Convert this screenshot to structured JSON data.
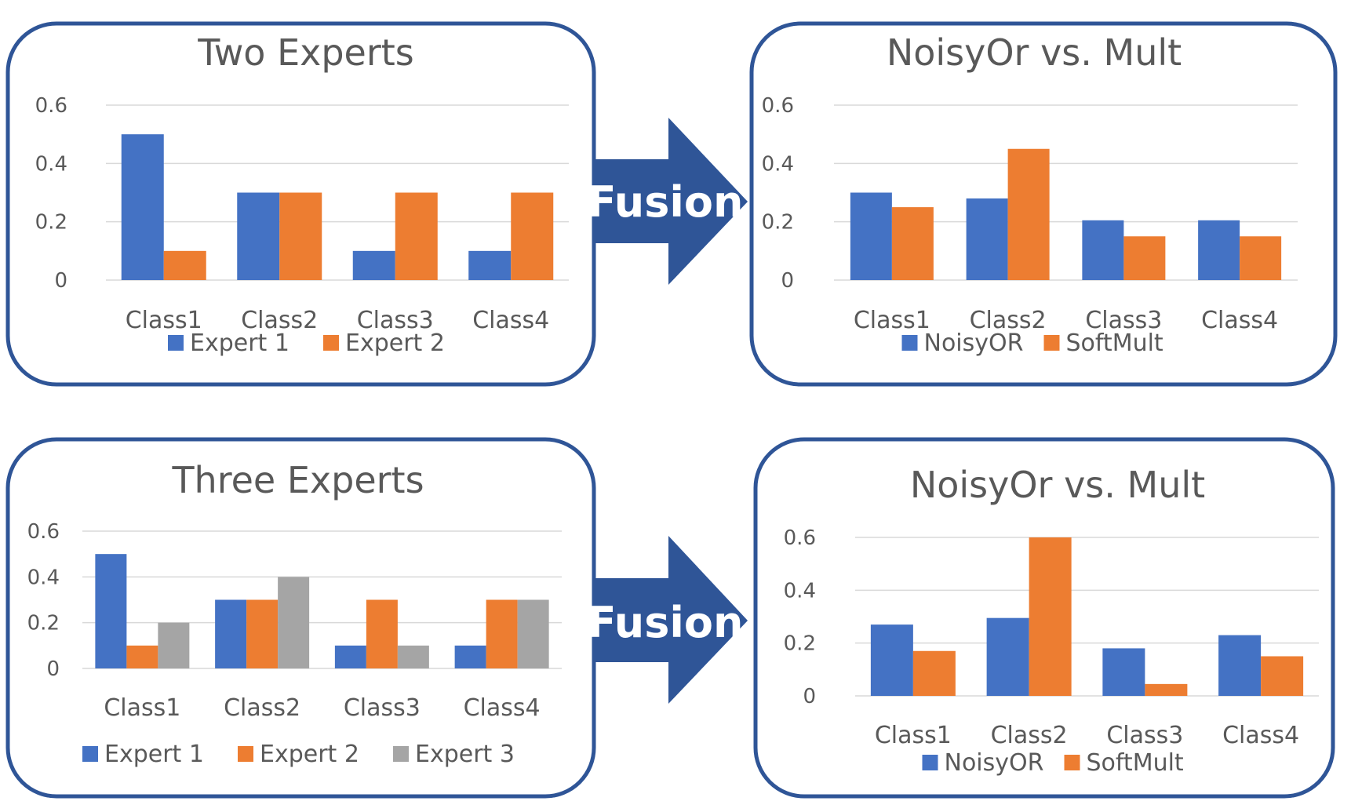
{
  "colors": {
    "frame": "#2f5597",
    "arrow": "#2f5597",
    "series_blue": "#4472c4",
    "series_orange": "#ed7d31",
    "series_gray": "#a5a5a5"
  },
  "arrows": [
    {
      "label": "Fusion"
    },
    {
      "label": "Fusion"
    }
  ],
  "chart_data": [
    {
      "type": "bar",
      "title": "Two Experts",
      "categories": [
        "Class1",
        "Class2",
        "Class3",
        "Class4"
      ],
      "yticks": [
        "0",
        "0.2",
        "0.4",
        "0.6"
      ],
      "ylim": [
        0,
        0.6
      ],
      "grid": true,
      "legend_position": "bottom",
      "series": [
        {
          "name": "Expert 1",
          "color": "#4472c4",
          "values": [
            0.5,
            0.3,
            0.1,
            0.1
          ]
        },
        {
          "name": "Expert 2",
          "color": "#ed7d31",
          "values": [
            0.1,
            0.3,
            0.3,
            0.3
          ]
        }
      ]
    },
    {
      "type": "bar",
      "title": "NoisyOr vs. Mult",
      "categories": [
        "Class1",
        "Class2",
        "Class3",
        "Class4"
      ],
      "yticks": [
        "0",
        "0.2",
        "0.4",
        "0.6"
      ],
      "ylim": [
        0,
        0.6
      ],
      "grid": true,
      "legend_position": "bottom",
      "series": [
        {
          "name": "NoisyOR",
          "color": "#4472c4",
          "values": [
            0.3,
            0.28,
            0.205,
            0.205
          ]
        },
        {
          "name": "SoftMult",
          "color": "#ed7d31",
          "values": [
            0.25,
            0.45,
            0.15,
            0.15
          ]
        }
      ]
    },
    {
      "type": "bar",
      "title": "Three Experts",
      "categories": [
        "Class1",
        "Class2",
        "Class3",
        "Class4"
      ],
      "yticks": [
        "0",
        "0.2",
        "0.4",
        "0.6"
      ],
      "ylim": [
        0,
        0.6
      ],
      "grid": true,
      "legend_position": "bottom",
      "series": [
        {
          "name": "Expert 1",
          "color": "#4472c4",
          "values": [
            0.5,
            0.3,
            0.1,
            0.1
          ]
        },
        {
          "name": "Expert 2",
          "color": "#ed7d31",
          "values": [
            0.1,
            0.3,
            0.3,
            0.3
          ]
        },
        {
          "name": "Expert 3",
          "color": "#a5a5a5",
          "values": [
            0.2,
            0.4,
            0.1,
            0.3
          ]
        }
      ]
    },
    {
      "type": "bar",
      "title": "NoisyOr vs. Mult",
      "categories": [
        "Class1",
        "Class2",
        "Class3",
        "Class4"
      ],
      "yticks": [
        "0",
        "0.2",
        "0.4",
        "0.6"
      ],
      "ylim": [
        0,
        0.6
      ],
      "grid": true,
      "legend_position": "bottom",
      "series": [
        {
          "name": "NoisyOR",
          "color": "#4472c4",
          "values": [
            0.27,
            0.295,
            0.18,
            0.23
          ]
        },
        {
          "name": "SoftMult",
          "color": "#ed7d31",
          "values": [
            0.17,
            0.6,
            0.045,
            0.15
          ]
        }
      ]
    }
  ]
}
